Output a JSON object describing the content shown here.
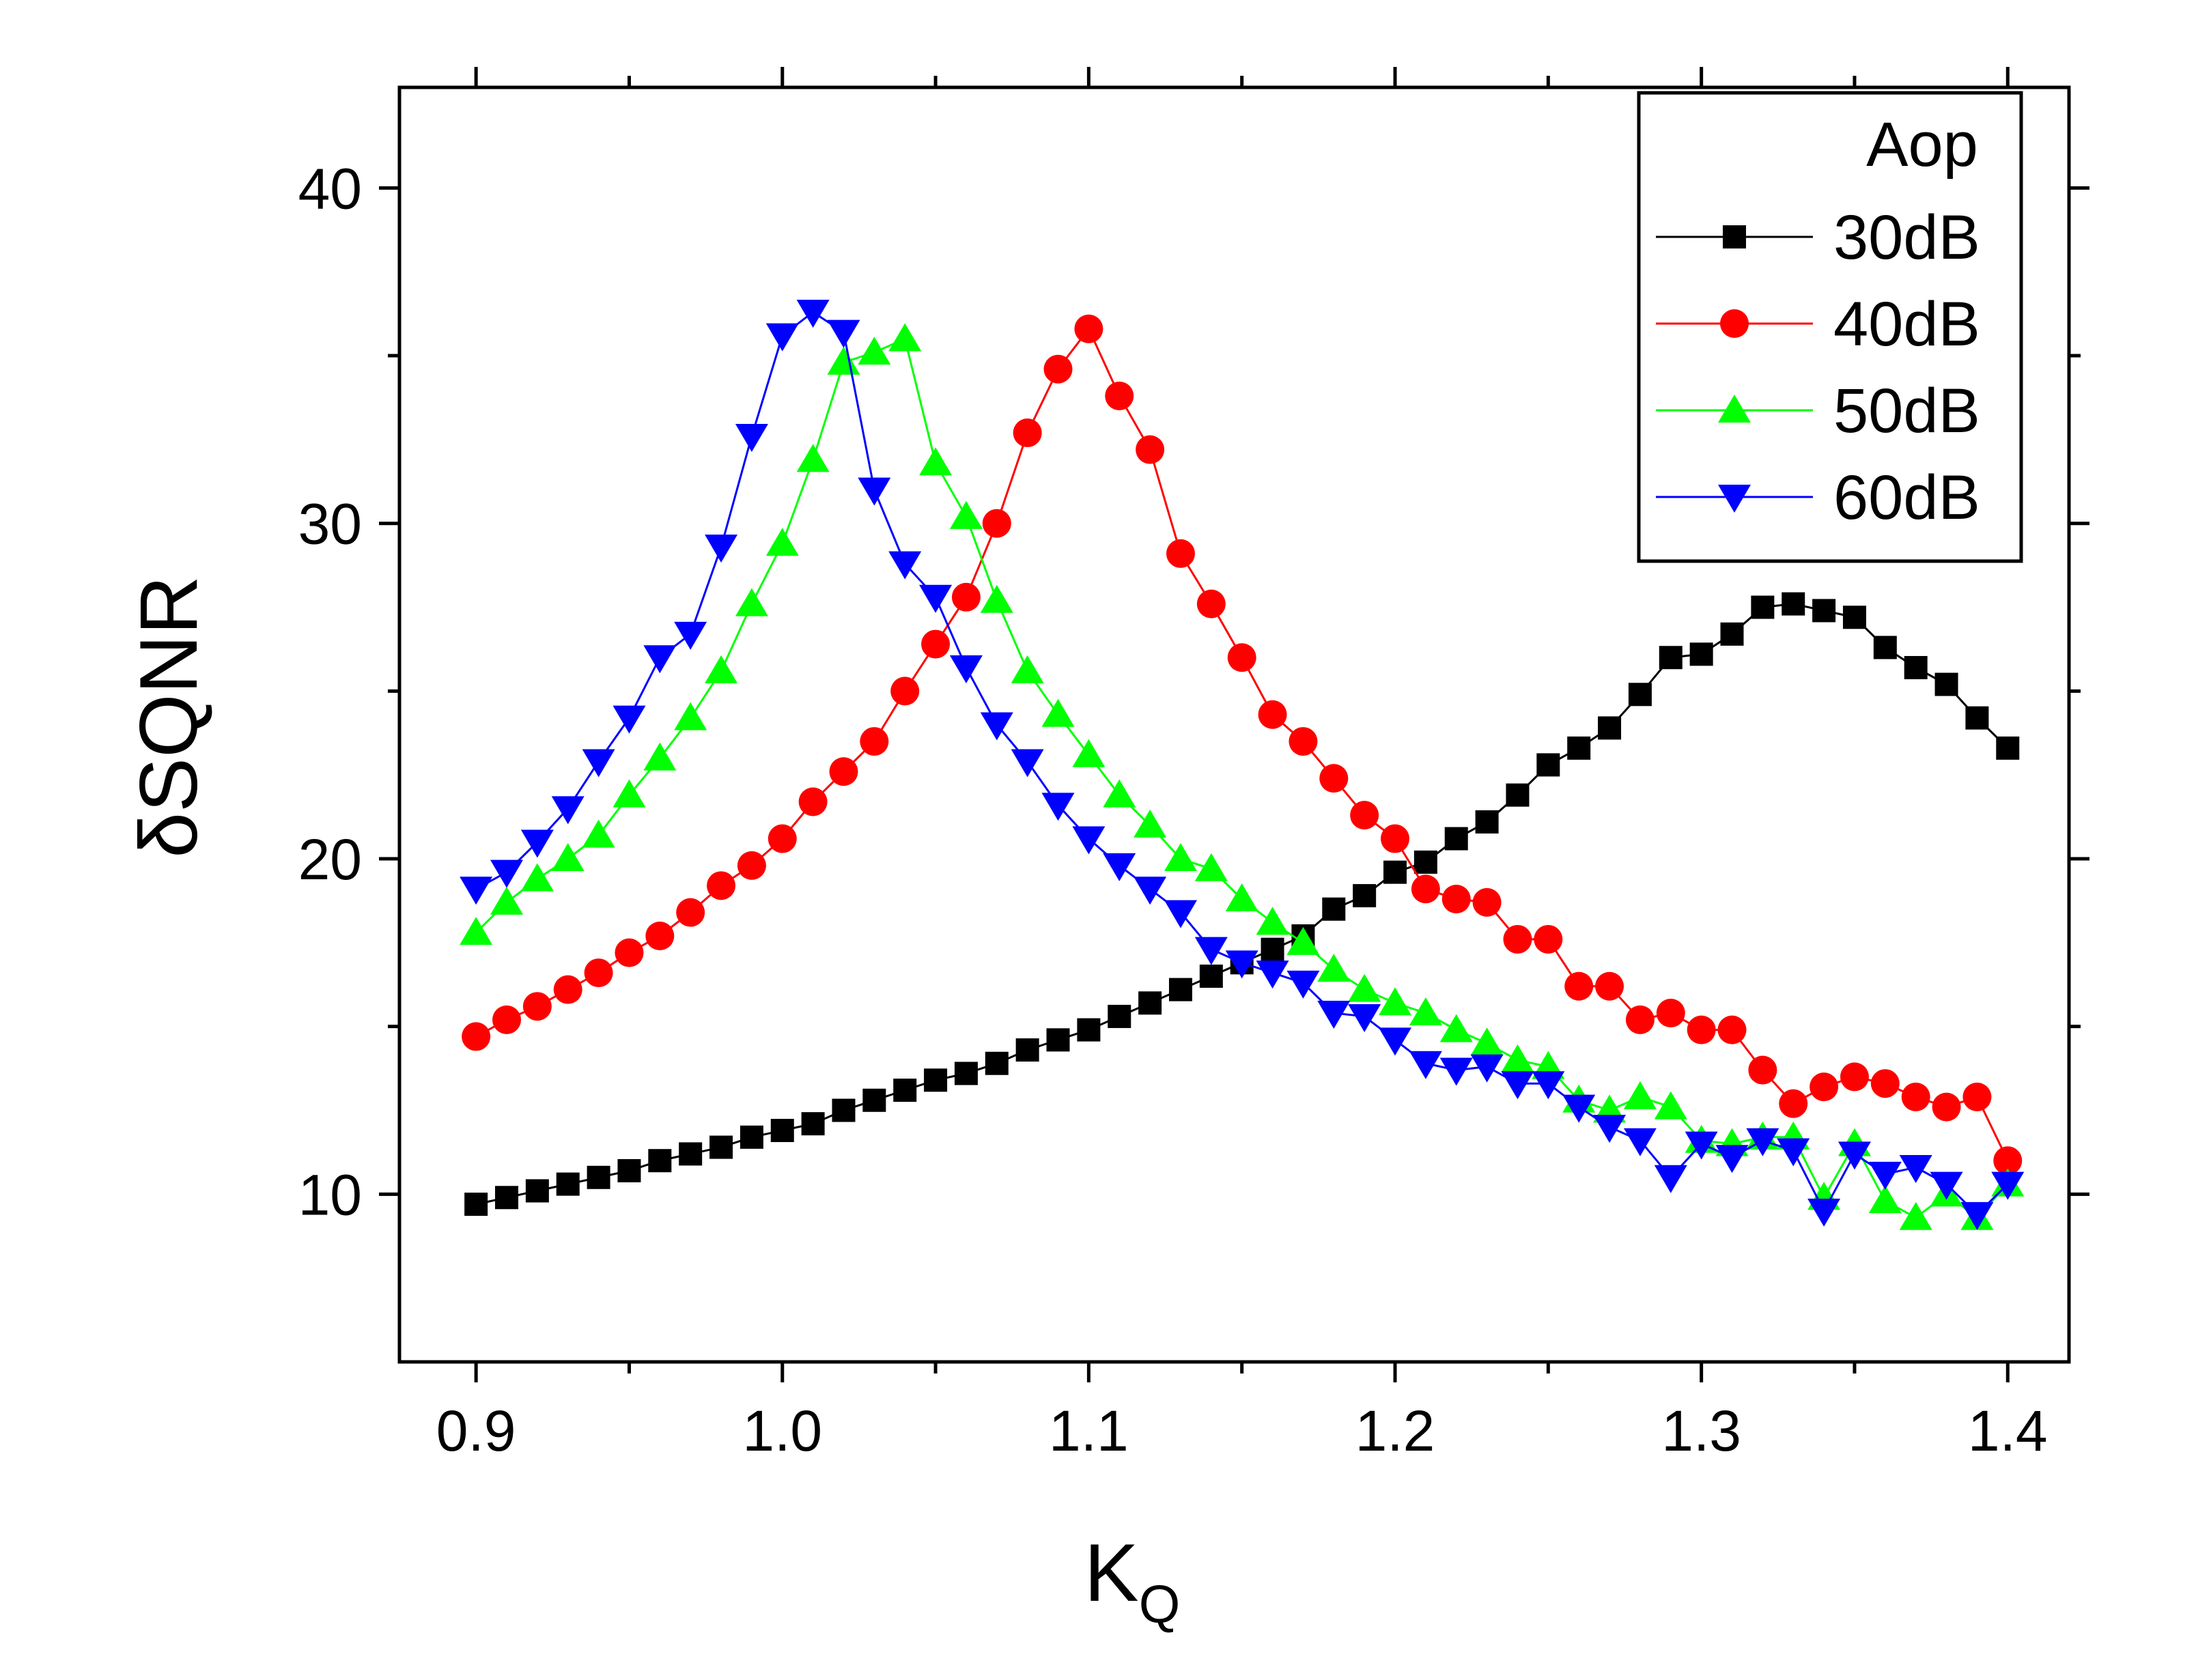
{
  "chart_data": {
    "type": "line",
    "xlabel": "K",
    "xlabel_sub": "Q",
    "ylabel": "δSQNR",
    "xlim": [
      0.875,
      1.42
    ],
    "ylim": [
      5,
      43
    ],
    "xticks": [
      "0.9",
      "1.0",
      "1.1",
      "1.2",
      "1.3",
      "1.4"
    ],
    "yticks": [
      "10",
      "20",
      "30",
      "40"
    ],
    "grid": false,
    "legend": {
      "title": "Aop",
      "position": "top-right"
    },
    "x": [
      0.9,
      0.91,
      0.92,
      0.93,
      0.94,
      0.95,
      0.96,
      0.97,
      0.98,
      0.99,
      1.0,
      1.01,
      1.02,
      1.03,
      1.04,
      1.05,
      1.06,
      1.07,
      1.08,
      1.09,
      1.1,
      1.11,
      1.12,
      1.13,
      1.14,
      1.15,
      1.16,
      1.17,
      1.18,
      1.19,
      1.2,
      1.21,
      1.22,
      1.23,
      1.24,
      1.25,
      1.26,
      1.27,
      1.28,
      1.29,
      1.3,
      1.31,
      1.32,
      1.33,
      1.34,
      1.35,
      1.36,
      1.37,
      1.38,
      1.39,
      1.4
    ],
    "series": [
      {
        "name": "30dB",
        "color": "#000000",
        "marker": "square",
        "values": [
          9.7,
          9.9,
          10.1,
          10.3,
          10.5,
          10.7,
          11.0,
          11.2,
          11.4,
          11.7,
          11.9,
          12.1,
          12.5,
          12.8,
          13.1,
          13.4,
          13.6,
          13.9,
          14.3,
          14.6,
          14.9,
          15.3,
          15.7,
          16.1,
          16.5,
          16.9,
          17.3,
          17.7,
          18.5,
          18.9,
          19.6,
          19.9,
          20.6,
          21.1,
          21.9,
          22.8,
          23.3,
          23.9,
          24.9,
          26.0,
          26.1,
          26.7,
          27.5,
          27.6,
          27.4,
          27.2,
          26.3,
          25.7,
          25.2,
          24.2,
          23.3
        ]
      },
      {
        "name": "40dB",
        "color": "#ff0000",
        "marker": "circle",
        "values": [
          14.7,
          15.2,
          15.6,
          16.1,
          16.6,
          17.2,
          17.7,
          18.4,
          19.2,
          19.8,
          20.6,
          21.7,
          22.6,
          23.5,
          25.0,
          26.4,
          27.8,
          30.0,
          32.7,
          34.6,
          35.8,
          33.8,
          32.2,
          29.1,
          27.6,
          26.0,
          24.3,
          23.5,
          22.4,
          21.3,
          20.6,
          19.1,
          18.8,
          18.7,
          17.6,
          17.6,
          16.2,
          16.2,
          15.2,
          15.4,
          14.9,
          14.9,
          13.7,
          12.7,
          13.2,
          13.5,
          13.3,
          12.9,
          12.6,
          12.9,
          11.0
        ]
      },
      {
        "name": "50dB",
        "color": "#00ff00",
        "marker": "triangle-up",
        "values": [
          17.8,
          18.7,
          19.4,
          20.0,
          20.7,
          21.9,
          23.0,
          24.2,
          25.6,
          27.6,
          29.4,
          31.9,
          34.8,
          35.1,
          35.5,
          31.8,
          30.2,
          27.7,
          25.6,
          24.3,
          23.1,
          21.9,
          21.0,
          20.0,
          19.7,
          18.8,
          18.1,
          17.5,
          16.7,
          16.1,
          15.7,
          15.4,
          14.9,
          14.5,
          14.0,
          13.8,
          12.8,
          12.5,
          12.9,
          12.6,
          11.6,
          11.5,
          11.7,
          11.7,
          9.9,
          11.5,
          9.8,
          9.3,
          10.0,
          9.3,
          10.3
        ]
      },
      {
        "name": "60dB",
        "color": "#0000ff",
        "marker": "triangle-down",
        "values": [
          19.1,
          19.6,
          20.5,
          21.5,
          22.9,
          24.2,
          26.0,
          26.7,
          29.3,
          32.6,
          35.6,
          36.3,
          35.7,
          31.0,
          28.8,
          27.8,
          25.7,
          24.0,
          22.9,
          21.6,
          20.6,
          19.8,
          19.1,
          18.4,
          17.3,
          16.9,
          16.6,
          16.3,
          15.4,
          15.3,
          14.6,
          13.9,
          13.7,
          13.8,
          13.3,
          13.3,
          12.6,
          12.0,
          11.6,
          10.5,
          11.5,
          11.1,
          11.6,
          11.3,
          9.5,
          11.2,
          10.6,
          10.8,
          10.3,
          9.4,
          10.3
        ]
      }
    ]
  }
}
